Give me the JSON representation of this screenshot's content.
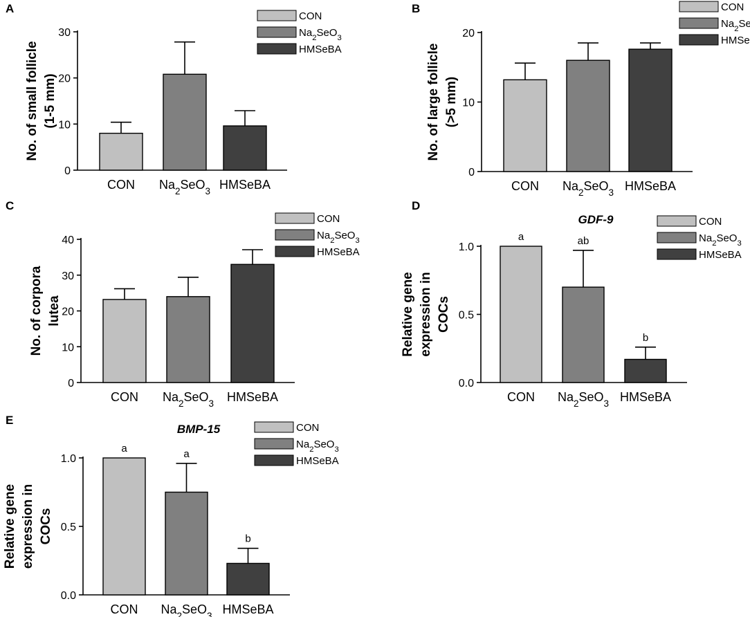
{
  "colors": {
    "CON": "#c0c0c0",
    "Na2SeO3": "#808080",
    "HMSeBA": "#404040"
  },
  "legend": [
    {
      "key": "CON",
      "label": "CON"
    },
    {
      "key": "Na2SeO3",
      "label": "Na2SeO3"
    },
    {
      "key": "HMSeBA",
      "label": "HMSeBA"
    }
  ],
  "chart_data": [
    {
      "panel": "A",
      "type": "bar",
      "title": "",
      "ylabel": [
        "No. of small follicle",
        "(1-5 mm)"
      ],
      "categories": [
        "CON",
        "Na2SeO3",
        "HMSeBA"
      ],
      "values": [
        8.0,
        20.8,
        9.6
      ],
      "errors": [
        2.4,
        7.0,
        3.3
      ],
      "significance": [],
      "ylim": [
        0,
        30
      ],
      "yticks": [
        "0",
        "10",
        "20",
        "30"
      ],
      "ytick_values": [
        0,
        10,
        20,
        30
      ]
    },
    {
      "panel": "B",
      "type": "bar",
      "title": "",
      "ylabel": [
        "No. of large follicle",
        "(>5 mm)"
      ],
      "categories": [
        "CON",
        "Na2SeO3",
        "HMSeBA"
      ],
      "values": [
        13.2,
        16.0,
        17.6
      ],
      "errors": [
        2.4,
        2.5,
        0.9
      ],
      "significance": [],
      "ylim": [
        0,
        20
      ],
      "yticks": [
        "0",
        "10",
        "20"
      ],
      "ytick_values": [
        0,
        10,
        20
      ]
    },
    {
      "panel": "C",
      "type": "bar",
      "title": "",
      "ylabel": [
        "No. of corpora",
        "lutea"
      ],
      "categories": [
        "CON",
        "Na2SeO3",
        "HMSeBA"
      ],
      "values": [
        23.2,
        24.0,
        33.0
      ],
      "errors": [
        3.0,
        5.4,
        4.1
      ],
      "significance": [],
      "ylim": [
        0,
        40
      ],
      "yticks": [
        "0",
        "10",
        "20",
        "30",
        "40"
      ],
      "ytick_values": [
        0,
        10,
        20,
        30,
        40
      ]
    },
    {
      "panel": "D",
      "type": "bar",
      "title": "GDF-9",
      "ylabel": [
        "Relative gene",
        "expression in",
        "COCs"
      ],
      "categories": [
        "CON",
        "Na2SeO3",
        "HMSeBA"
      ],
      "values": [
        1.0,
        0.7,
        0.17
      ],
      "errors": [
        0.0,
        0.27,
        0.09
      ],
      "significance": [
        "a",
        "ab",
        "b"
      ],
      "ylim": [
        0,
        1.0
      ],
      "yticks": [
        "0.0",
        "0.5",
        "1.0"
      ],
      "ytick_values": [
        0,
        0.5,
        1.0
      ]
    },
    {
      "panel": "E",
      "type": "bar",
      "title": "BMP-15",
      "ylabel": [
        "Relative gene",
        "expression in",
        "COCs"
      ],
      "categories": [
        "CON",
        "Na2SeO3",
        "HMSeBA"
      ],
      "values": [
        1.0,
        0.75,
        0.23
      ],
      "errors": [
        0.0,
        0.21,
        0.11
      ],
      "significance": [
        "a",
        "a",
        "b"
      ],
      "ylim": [
        0,
        1.0
      ],
      "yticks": [
        "0.0",
        "0.5",
        "1.0"
      ],
      "ytick_values": [
        0,
        0.5,
        1.0
      ]
    }
  ]
}
